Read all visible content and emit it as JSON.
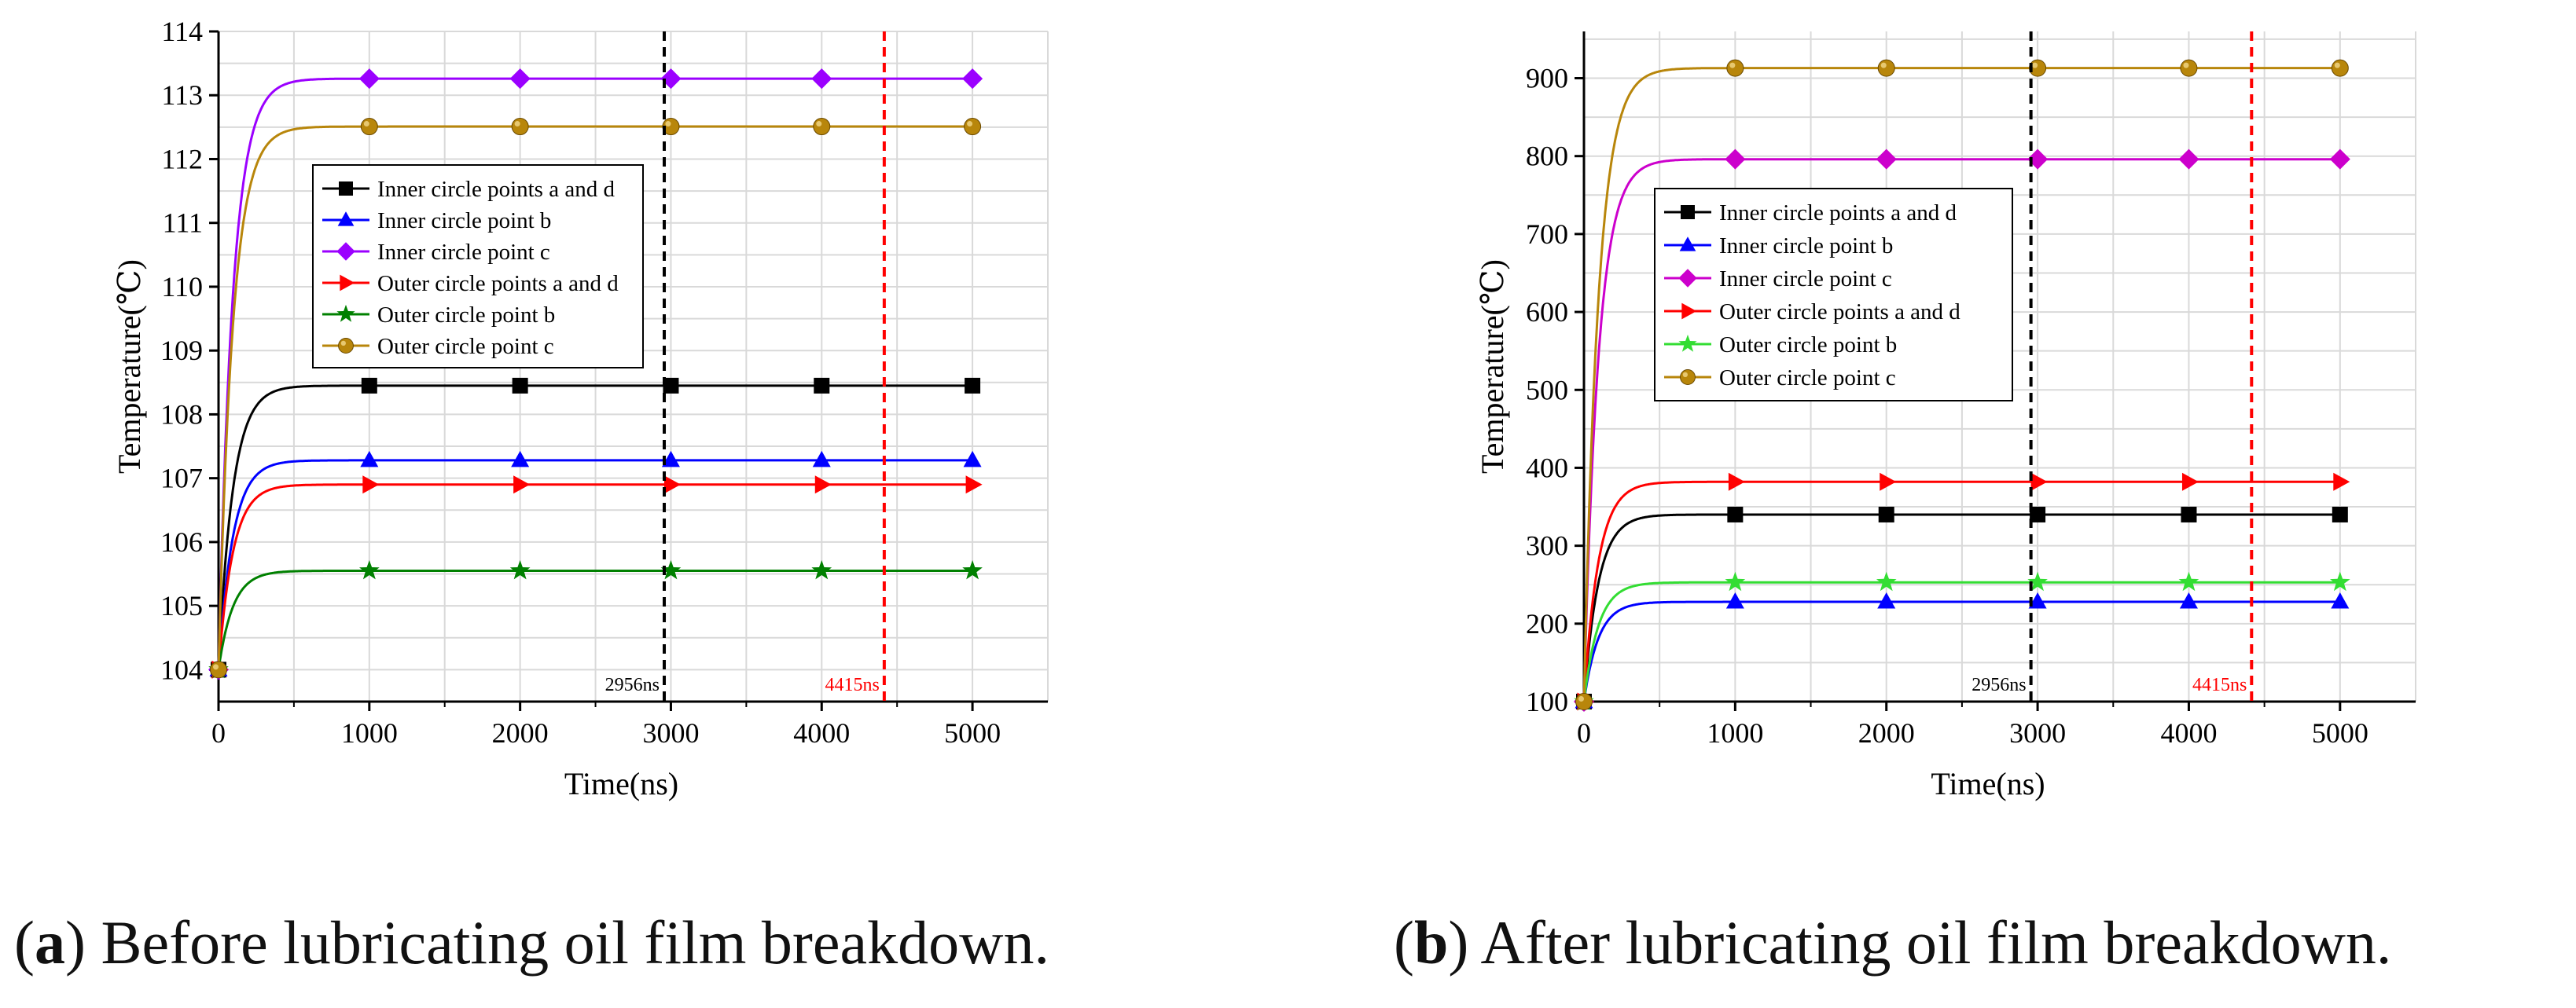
{
  "chart_data": [
    {
      "panel": "a",
      "type": "line",
      "xlabel": "Time(ns)",
      "ylabel": "Temperature(℃)",
      "xlim": [
        0,
        5500
      ],
      "ylim": [
        103.5,
        114
      ],
      "xticks": [
        0,
        1000,
        2000,
        3000,
        4000,
        5000
      ],
      "xtick_labels": [
        "0",
        "1000",
        "2000",
        "3000",
        "4000",
        "5000"
      ],
      "yticks": [
        104,
        105,
        106,
        107,
        108,
        109,
        110,
        111,
        112,
        113,
        114
      ],
      "ytick_labels": [
        "104",
        "105",
        "106",
        "107",
        "108",
        "109",
        "110",
        "111",
        "112",
        "113",
        "114"
      ],
      "grid": true,
      "legend_position": "upper-left-inside",
      "series": [
        {
          "name": "Inner circle points a and d",
          "start": 104,
          "steady": 108.45,
          "marker": "square",
          "color": "#000000"
        },
        {
          "name": "Inner circle point b",
          "start": 104,
          "steady": 107.28,
          "marker": "triangle-up",
          "color": "#0000ff"
        },
        {
          "name": "Inner circle point c",
          "start": 104,
          "steady": 113.26,
          "marker": "diamond",
          "color": "#9b00ff"
        },
        {
          "name": "Outer circle points a and d",
          "start": 104,
          "steady": 106.9,
          "marker": "triangle-right",
          "color": "#ff0000"
        },
        {
          "name": "Outer circle point b",
          "start": 104,
          "steady": 105.55,
          "marker": "star",
          "color": "#008000"
        },
        {
          "name": "Outer circle point c",
          "start": 104,
          "steady": 112.51,
          "marker": "circle",
          "color": "#b8860b"
        }
      ],
      "marker_x": [
        0,
        1000,
        2000,
        3000,
        4000,
        5000
      ],
      "vlines": [
        {
          "x": 2956,
          "label": "2956ns",
          "color": "#000000"
        },
        {
          "x": 4415,
          "label": "4415ns",
          "color": "#ff0000"
        }
      ]
    },
    {
      "panel": "b",
      "type": "line",
      "xlabel": "Time(ns)",
      "ylabel": "Temperature(℃)",
      "xlim": [
        0,
        5500
      ],
      "ylim": [
        100,
        960
      ],
      "xticks": [
        0,
        1000,
        2000,
        3000,
        4000,
        5000
      ],
      "xtick_labels": [
        "0",
        "1000",
        "2000",
        "3000",
        "4000",
        "5000"
      ],
      "yticks": [
        100,
        200,
        300,
        400,
        500,
        600,
        700,
        800,
        900
      ],
      "ytick_labels": [
        "100",
        "200",
        "300",
        "400",
        "500",
        "600",
        "700",
        "800",
        "900"
      ],
      "grid": true,
      "legend_position": "middle-left-inside",
      "series": [
        {
          "name": "Inner circle points a and d",
          "start": 100,
          "steady": 340,
          "marker": "square",
          "color": "#000000"
        },
        {
          "name": "Inner circle point b",
          "start": 100,
          "steady": 228,
          "marker": "triangle-up",
          "color": "#0000ff"
        },
        {
          "name": "Inner circle point c",
          "start": 100,
          "steady": 796,
          "marker": "diamond",
          "color": "#cc00cc"
        },
        {
          "name": "Outer circle points a and d",
          "start": 100,
          "steady": 382,
          "marker": "triangle-right",
          "color": "#ff0000"
        },
        {
          "name": "Outer circle point b",
          "start": 100,
          "steady": 253,
          "marker": "star",
          "color": "#33dd33"
        },
        {
          "name": "Outer circle point c",
          "start": 100,
          "steady": 913,
          "marker": "circle",
          "color": "#b8860b"
        }
      ],
      "marker_x": [
        0,
        1000,
        2000,
        3000,
        4000,
        5000
      ],
      "vlines": [
        {
          "x": 2956,
          "label": "2956ns",
          "color": "#000000"
        },
        {
          "x": 4415,
          "label": "4415ns",
          "color": "#ff0000"
        }
      ]
    }
  ],
  "captions": [
    {
      "letter": "a",
      "text": " Before lubricating oil film breakdown."
    },
    {
      "letter": "b",
      "text": " After lubricating oil film breakdown."
    }
  ]
}
